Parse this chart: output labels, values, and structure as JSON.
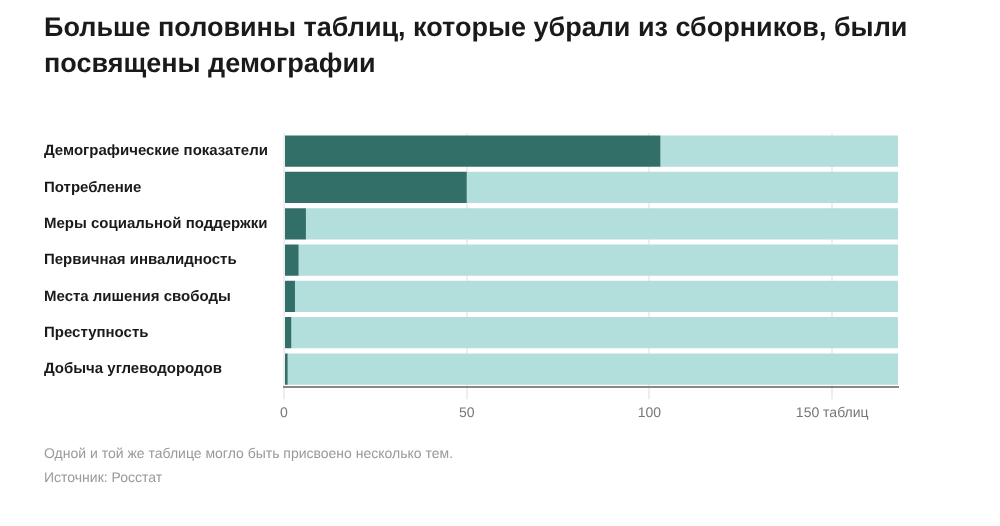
{
  "chart_data": {
    "type": "bar",
    "orientation": "horizontal",
    "stacked": true,
    "title": "Больше половины таблиц, которые убрали из сборников, были посвящены демографии",
    "categories": [
      "Демографические показатели",
      "Потребление",
      "Меры социальной поддержки",
      "Первичная инвалидность",
      "Места лишения свободы",
      "Преступность",
      "Добыча углеводородов"
    ],
    "series": [
      {
        "color": "#336f69",
        "values": [
          103,
          50,
          6,
          4,
          3,
          2,
          1
        ]
      },
      {
        "color": "#b2dfdb",
        "values": [
          65,
          118,
          162,
          164,
          165,
          166,
          167
        ]
      }
    ],
    "xlim": [
      0,
      168
    ],
    "xticks": [
      0,
      50,
      100,
      {
        "value": 150,
        "label": "150 таблиц"
      }
    ],
    "grid": "x",
    "legend": false,
    "annotations": [
      "Одной и той же таблице могло быть присвоено несколько тем.",
      "Источник: Росстат"
    ]
  }
}
